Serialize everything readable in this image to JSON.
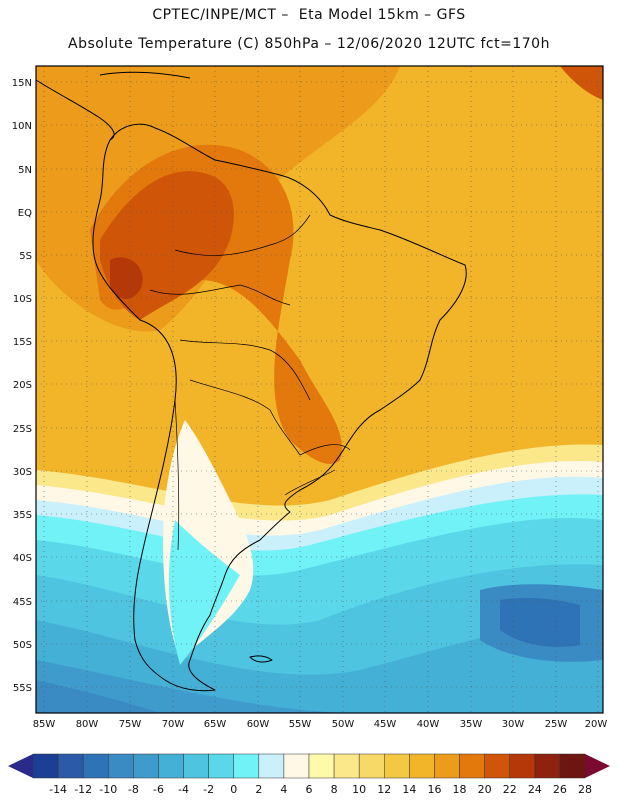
{
  "header": {
    "line1": "CPTEC/INPE/MCT –  Eta Model 15km – GFS",
    "line2": "Absolute Temperature (C) 850hPa – 12/06/2020 12UTC fct=170h"
  },
  "axes": {
    "lat_labels": [
      "15N",
      "10N",
      "5N",
      "EQ",
      "5S",
      "10S",
      "15S",
      "20S",
      "25S",
      "30S",
      "35S",
      "40S",
      "45S",
      "50S",
      "55S"
    ],
    "lon_labels": [
      "85W",
      "80W",
      "75W",
      "70W",
      "65W",
      "60W",
      "55W",
      "50W",
      "45W",
      "40W",
      "35W",
      "30W",
      "25W",
      "20W"
    ]
  },
  "colorbar": {
    "ticks": [
      "-14",
      "-12",
      "-10",
      "-8",
      "-6",
      "-4",
      "-2",
      "0",
      "2",
      "4",
      "6",
      "8",
      "10",
      "12",
      "14",
      "16",
      "18",
      "20",
      "22",
      "24",
      "26",
      "28"
    ],
    "colors": [
      "#1c3f96",
      "#2a5aa8",
      "#2f73b7",
      "#3a8ac4",
      "#3f9bcc",
      "#45b0d6",
      "#4fc4e0",
      "#5ad8ea",
      "#70f2f7",
      "#c9f0fb",
      "#fff8e6",
      "#fffaaa",
      "#fbe88a",
      "#f7d968",
      "#f5c844",
      "#f2b52a",
      "#ec9c1a",
      "#e3780c",
      "#cf5608",
      "#b43808",
      "#8f220e",
      "#6d1510"
    ],
    "under_color": "#2a2a8a",
    "over_color": "#7a0a30"
  }
}
